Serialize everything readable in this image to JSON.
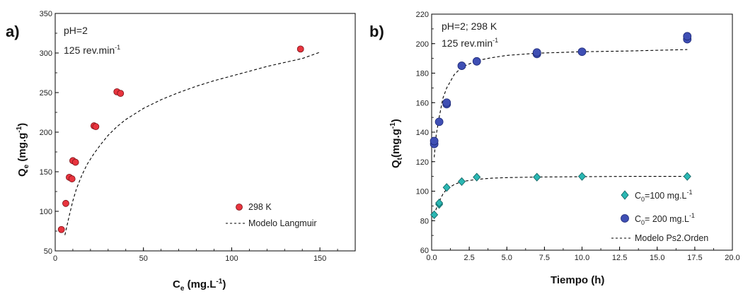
{
  "chart_data": [
    {
      "type": "scatter",
      "panel_label": "a)",
      "annotation_lines": [
        "pH=2",
        "125 rev.min"
      ],
      "annotation_sup": "-1",
      "xlabel_main": "C",
      "xlabel_sub": "e",
      "xlabel_unit": " (mg.L",
      "xlabel_sup": "-1",
      "xlabel_close": ")",
      "ylabel_main": "Q",
      "ylabel_sub": "e",
      "ylabel_unit": " (mg.g",
      "ylabel_sup": "-1",
      "ylabel_close": ")",
      "xlim": [
        0,
        170
      ],
      "ylim": [
        50,
        350
      ],
      "xticks": [
        0,
        50,
        100,
        150
      ],
      "yticks": [
        50,
        100,
        150,
        200,
        250,
        300,
        350
      ],
      "series": [
        {
          "name": "298 K",
          "marker": "circle",
          "color": "#e8343e",
          "x": [
            3.5,
            6,
            8,
            9.5,
            10,
            11.5,
            22,
            23,
            35,
            37,
            139
          ],
          "y": [
            77,
            110,
            143,
            141,
            164,
            162,
            208,
            207,
            251,
            249,
            305
          ]
        },
        {
          "name": "Modelo Langmuir",
          "style": "dashed",
          "color": "#000000",
          "x": [
            5.5,
            6.5,
            8,
            10,
            12,
            15,
            18,
            22,
            26,
            30,
            35,
            40,
            50,
            60,
            70,
            80,
            90,
            100,
            110,
            120,
            130,
            140,
            150
          ],
          "y": [
            70,
            80,
            95,
            113,
            128,
            145,
            159,
            173,
            185,
            196,
            207,
            216,
            230,
            241,
            250,
            258,
            265,
            271,
            277,
            283,
            288,
            293,
            301
          ]
        }
      ],
      "legend_position": "bottom-right"
    },
    {
      "type": "scatter",
      "panel_label": "b)",
      "annotation_lines": [
        "pH=2; 298 K",
        "125 rev.min"
      ],
      "annotation_sup": "-1",
      "xlabel_main": "Tiempo (h)",
      "ylabel_main": "Q",
      "ylabel_sub": "t",
      "ylabel_unit": "(mg.g",
      "ylabel_sup": "-1",
      "ylabel_close": ")",
      "xlim": [
        0,
        20
      ],
      "ylim": [
        60,
        220
      ],
      "xticks": [
        "0.0",
        "2.5",
        "5.0",
        "7.5",
        "10.0",
        "12.5",
        "15.0",
        "17.5",
        "20.0"
      ],
      "yticks": [
        60,
        80,
        100,
        120,
        140,
        160,
        180,
        200,
        220
      ],
      "series": [
        {
          "name_main": "C",
          "name_sub": "0",
          "name_rest": "=100 mg.L",
          "name_sup": "-1",
          "marker": "diamond",
          "color": "#2bb7b3",
          "x": [
            0.17,
            0.5,
            0.5,
            1,
            2,
            3,
            7,
            10,
            17
          ],
          "y": [
            84,
            91,
            92,
            102.5,
            106.5,
            109.5,
            109.5,
            110,
            110
          ]
        },
        {
          "name_main": "C",
          "name_sub": "0",
          "name_rest": "= 200 mg.L",
          "name_sup": "-1",
          "marker": "circle",
          "color": "#3f4fb4",
          "x": [
            0.17,
            0.17,
            0.5,
            1,
            1,
            2,
            3,
            7,
            7,
            10,
            17,
            17
          ],
          "y": [
            132,
            134,
            147,
            159,
            160,
            185,
            188,
            193,
            194,
            194.5,
            203,
            205
          ]
        },
        {
          "name": "Modelo Ps2.Orden",
          "style": "dashed",
          "color": "#000000",
          "curves": [
            {
              "x": [
                0.17,
                0.3,
                0.5,
                0.75,
                1,
                1.5,
                2,
                3,
                4,
                5,
                7,
                10,
                13,
                17
              ],
              "y": [
                84,
                88,
                93,
                98,
                101.5,
                104.5,
                106.5,
                108,
                108.8,
                109.2,
                109.6,
                109.8,
                110,
                110
              ]
            },
            {
              "x": [
                0.17,
                0.3,
                0.5,
                0.75,
                1,
                1.5,
                2,
                3,
                4,
                5,
                7,
                10,
                13,
                17
              ],
              "y": [
                123,
                138,
                150,
                163,
                170,
                179,
                184,
                188.5,
                190.5,
                192,
                193.5,
                194.5,
                195,
                196
              ]
            }
          ]
        }
      ],
      "legend_position": "bottom-right"
    }
  ]
}
